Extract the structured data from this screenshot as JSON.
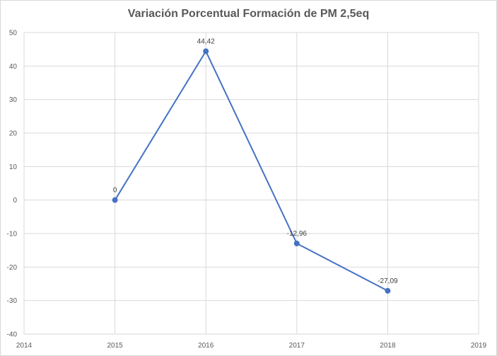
{
  "chart_data": {
    "type": "scatter",
    "title": "Variación Porcentual Formación de PM 2,5eq",
    "xlabel": "",
    "ylabel": "",
    "xlim": [
      2014,
      2019
    ],
    "ylim": [
      -40,
      50
    ],
    "x_ticks": [
      "2014",
      "2015",
      "2016",
      "2017",
      "2018",
      "2019"
    ],
    "y_ticks": [
      "50",
      "40",
      "30",
      "20",
      "10",
      "0",
      "-10",
      "-20",
      "-30",
      "-40"
    ],
    "grid": true,
    "legend": "none",
    "series": [
      {
        "x": [
          2015,
          2016,
          2017,
          2018
        ],
        "values": [
          0,
          44.42,
          -12.96,
          -27.09
        ],
        "labels": [
          "0",
          "44,42",
          "-12,96",
          "-27,09"
        ],
        "color": "#4472c4",
        "lines": true,
        "markers": true
      }
    ]
  }
}
